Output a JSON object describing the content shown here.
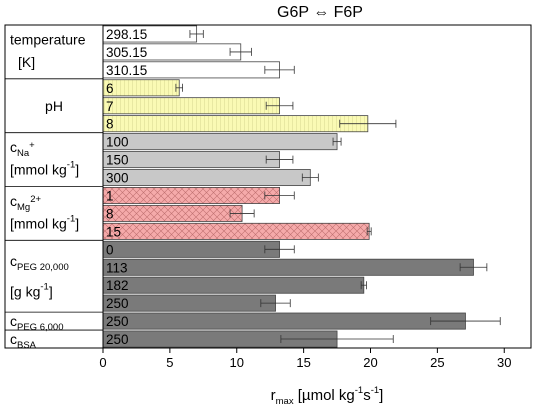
{
  "chart_data": {
    "type": "bar",
    "orientation": "horizontal",
    "title": "G6P ⇔ F6P",
    "xlabel": "r",
    "xlabel_sub": "max",
    "xlabel_unit": "[µmol kg",
    "xlabel_sup1": "-1",
    "xlabel_unit2": "s",
    "xlabel_sup2": "-1",
    "xlabel_end": "]",
    "xlim": [
      0,
      32
    ],
    "xticks": [
      "0",
      "5",
      "10",
      "15",
      "20",
      "25",
      "30"
    ],
    "colors": {
      "white": "#ffffff",
      "yellow": "#fafab4",
      "lightgray": "#c8c8c8",
      "pink": "#f5aaaa",
      "darkgray": "#7a7a7a"
    },
    "groups": [
      {
        "id": "temperature",
        "label": "temperature",
        "label2": "[K]",
        "bars": [
          {
            "label": "298.15",
            "value": 7.0,
            "error": 0.5,
            "color": "white"
          },
          {
            "label": "305.15",
            "value": 10.3,
            "error": 0.8,
            "color": "white"
          },
          {
            "label": "310.15",
            "value": 13.2,
            "error": 1.1,
            "color": "white"
          }
        ]
      },
      {
        "id": "ph",
        "label": "pH",
        "bars": [
          {
            "label": "6",
            "value": 5.7,
            "error": 0.25,
            "color": "yellow"
          },
          {
            "label": "7",
            "value": 13.2,
            "error": 1.0,
            "color": "yellow"
          },
          {
            "label": "8",
            "value": 19.8,
            "error": 2.1,
            "color": "yellow"
          }
        ]
      },
      {
        "id": "na",
        "label": "c",
        "label_sub": "Na",
        "label_sup": "+",
        "label2": "[mmol kg",
        "label2_sup": "-1",
        "label2_end": "]",
        "bars": [
          {
            "label": "100",
            "value": 17.5,
            "error": 0.3,
            "color": "lightgray"
          },
          {
            "label": "150",
            "value": 13.2,
            "error": 1.0,
            "color": "lightgray"
          },
          {
            "label": "300",
            "value": 15.5,
            "error": 0.6,
            "color": "lightgray"
          }
        ]
      },
      {
        "id": "mg",
        "label": "c",
        "label_sub": "Mg",
        "label_sup": "2+",
        "label2": "[mmol kg",
        "label2_sup": "-1",
        "label2_end": "]",
        "bars": [
          {
            "label": "1",
            "value": 13.2,
            "error": 1.1,
            "color": "pink"
          },
          {
            "label": "8",
            "value": 10.4,
            "error": 0.9,
            "color": "pink"
          },
          {
            "label": "15",
            "value": 19.9,
            "error": 0.15,
            "color": "pink"
          }
        ]
      },
      {
        "id": "peg20",
        "label": "c",
        "label_sub": "PEG 20,000",
        "label2": "[g kg",
        "label2_sup": "-1",
        "label2_end": "]",
        "bars": [
          {
            "label": "0",
            "value": 13.2,
            "error": 1.1,
            "color": "darkgray"
          },
          {
            "label": "113",
            "value": 27.7,
            "error": 1.0,
            "color": "darkgray"
          },
          {
            "label": "182",
            "value": 19.5,
            "error": 0.2,
            "color": "darkgray"
          },
          {
            "label": "250",
            "value": 12.9,
            "error": 1.1,
            "color": "darkgray"
          }
        ]
      },
      {
        "id": "peg6",
        "label": "c",
        "label_sub": "PEG 6,000",
        "bars": [
          {
            "label": "250",
            "value": 27.1,
            "error": 2.6,
            "color": "darkgray"
          }
        ]
      },
      {
        "id": "bsa",
        "label": "c",
        "label_sub": "BSA",
        "bars": [
          {
            "label": "250",
            "value": 17.5,
            "error": 4.2,
            "color": "darkgray"
          }
        ]
      }
    ]
  }
}
